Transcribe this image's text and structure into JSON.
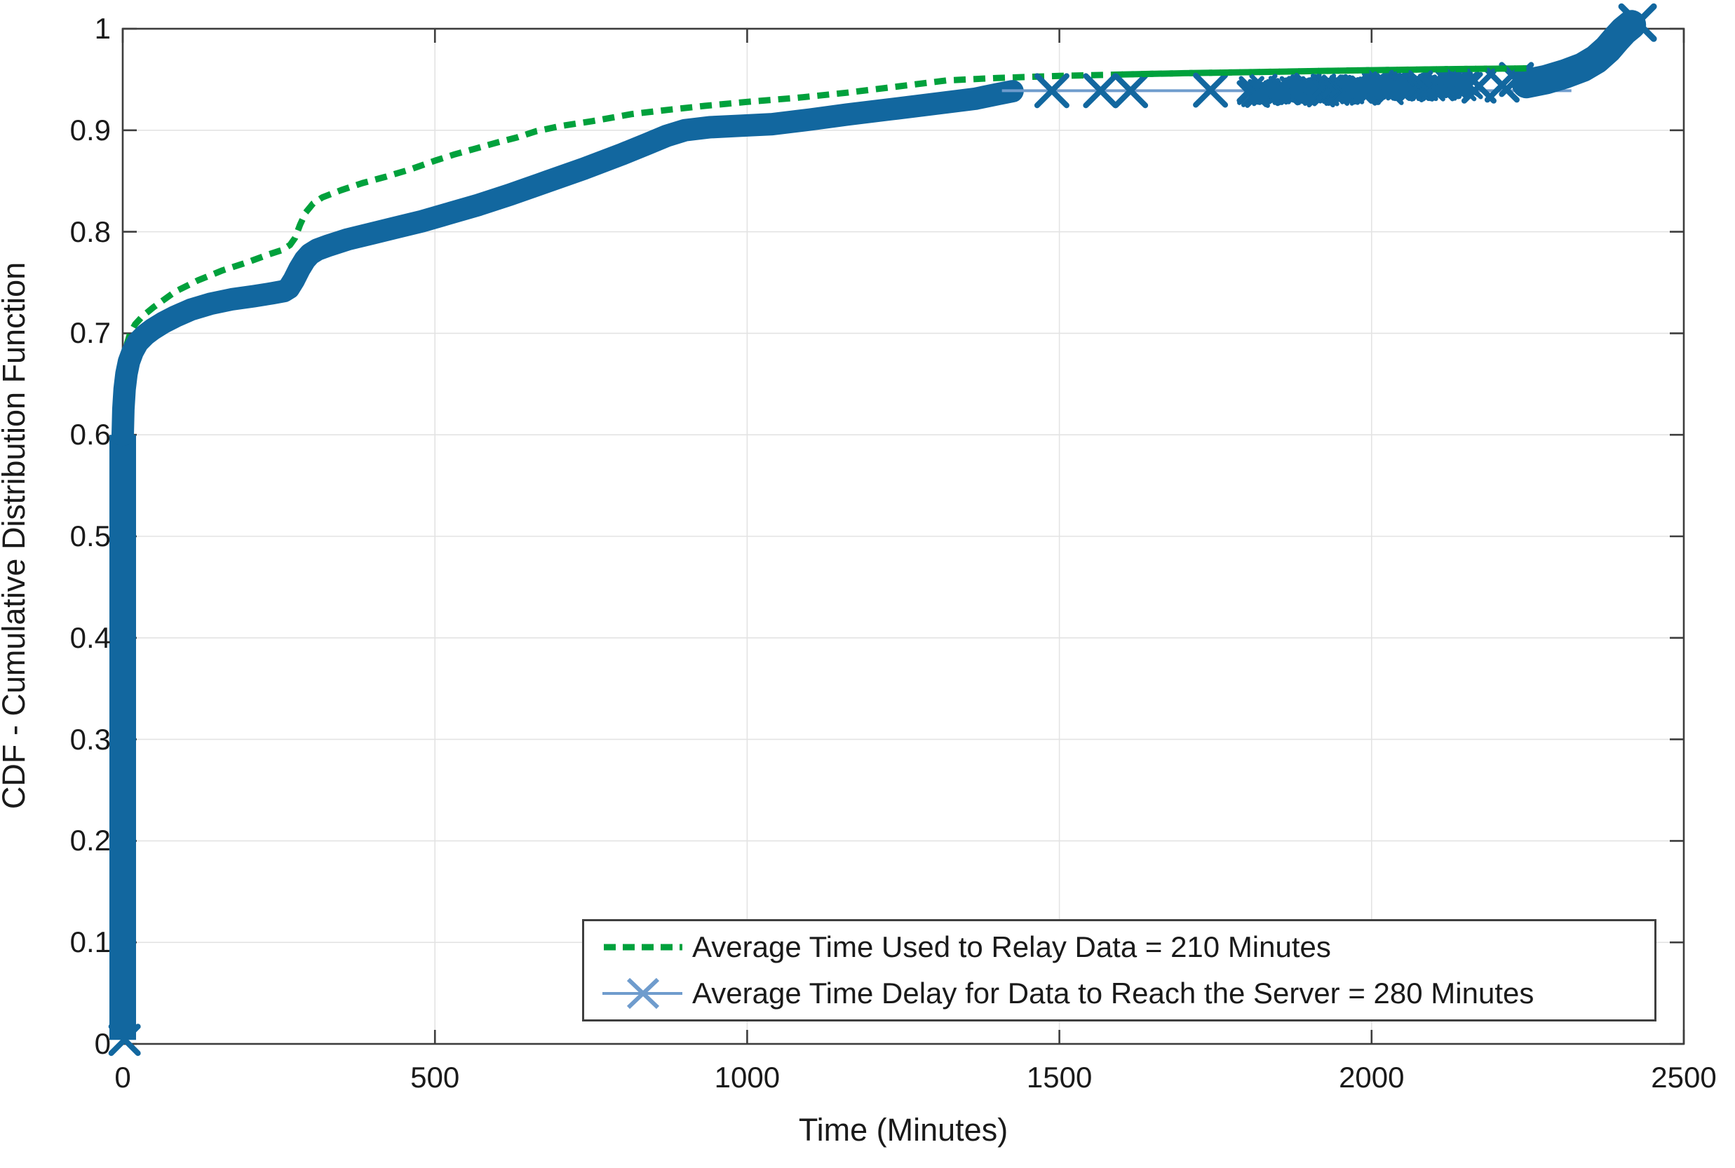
{
  "chart_data": {
    "type": "line",
    "title": "",
    "grid": true,
    "legend_position": "south-inside",
    "colors": {
      "relay_green": "#00a13c",
      "delay_blue": "#12679f",
      "delay_thin_line": "#6f9ccd",
      "grid": "#e3e3e3",
      "frame": "#3d3d3d",
      "text": "#1a1a1a"
    },
    "x_axis": {
      "label": "Time (Minutes)",
      "min": 0,
      "max": 2500,
      "ticks": [
        0,
        500,
        1000,
        1500,
        2000,
        2500
      ],
      "tick_labels": [
        "0",
        "500",
        "1000",
        "1500",
        "2000",
        "2500"
      ]
    },
    "y_axis": {
      "label": "CDF - Cumulative Distribution Function",
      "min": 0,
      "max": 1,
      "ticks": [
        0,
        0.1,
        0.2,
        0.3,
        0.4,
        0.5,
        0.6,
        0.7,
        0.8,
        0.9,
        1
      ],
      "tick_labels": [
        "0",
        "0.1",
        "0.2",
        "0.3",
        "0.4",
        "0.5",
        "0.6",
        "0.7",
        "0.8",
        "0.9",
        "1"
      ]
    },
    "series": [
      {
        "name": "Average Time Used to Relay Data = 210 Minutes",
        "average_minutes": 210,
        "style": "dashed",
        "color": "#00a13c",
        "points": [
          [
            0,
            0.63
          ],
          [
            2,
            0.658
          ],
          [
            4,
            0.676
          ],
          [
            7,
            0.69
          ],
          [
            12,
            0.7
          ],
          [
            20,
            0.709
          ],
          [
            32,
            0.717
          ],
          [
            50,
            0.726
          ],
          [
            84,
            0.741
          ],
          [
            120,
            0.752
          ],
          [
            160,
            0.762
          ],
          [
            200,
            0.77
          ],
          [
            235,
            0.778
          ],
          [
            255,
            0.782
          ],
          [
            268,
            0.787
          ],
          [
            276,
            0.794
          ],
          [
            284,
            0.807
          ],
          [
            293,
            0.819
          ],
          [
            305,
            0.828
          ],
          [
            320,
            0.834
          ],
          [
            350,
            0.841
          ],
          [
            384,
            0.848
          ],
          [
            420,
            0.854
          ],
          [
            458,
            0.861
          ],
          [
            500,
            0.87
          ],
          [
            530,
            0.876
          ],
          [
            565,
            0.882
          ],
          [
            600,
            0.888
          ],
          [
            632,
            0.893
          ],
          [
            662,
            0.899
          ],
          [
            700,
            0.904
          ],
          [
            752,
            0.909
          ],
          [
            816,
            0.916
          ],
          [
            872,
            0.92
          ],
          [
            932,
            0.924
          ],
          [
            1000,
            0.928
          ],
          [
            1080,
            0.932
          ],
          [
            1160,
            0.937
          ],
          [
            1240,
            0.943
          ],
          [
            1319,
            0.949
          ],
          [
            1400,
            0.9515
          ],
          [
            1500,
            0.9535
          ],
          [
            1600,
            0.955
          ],
          [
            1700,
            0.9562
          ],
          [
            1800,
            0.9572
          ],
          [
            1900,
            0.9582
          ],
          [
            2000,
            0.9592
          ],
          [
            2100,
            0.96
          ],
          [
            2180,
            0.9606
          ],
          [
            2255,
            0.961
          ]
        ]
      },
      {
        "name": "Average Time Delay for Data to Reach the Server = 280 Minutes",
        "average_minutes": 280,
        "style": "x-markers",
        "color": "#12679f",
        "line_color": "#6f9ccd",
        "vertical_segment": [
          [
            0,
            0.004
          ],
          [
            0,
            0.6
          ]
        ],
        "band_points": [
          [
            0,
            0.6
          ],
          [
            1,
            0.625
          ],
          [
            3,
            0.645
          ],
          [
            6,
            0.66
          ],
          [
            10,
            0.672
          ],
          [
            16,
            0.682
          ],
          [
            24,
            0.691
          ],
          [
            36,
            0.6985
          ],
          [
            48,
            0.704
          ],
          [
            65,
            0.7105
          ],
          [
            84,
            0.7165
          ],
          [
            110,
            0.7235
          ],
          [
            140,
            0.729
          ],
          [
            175,
            0.7335
          ],
          [
            210,
            0.7365
          ],
          [
            240,
            0.7395
          ],
          [
            258,
            0.7415
          ],
          [
            266,
            0.7445
          ],
          [
            274,
            0.7525
          ],
          [
            283,
            0.7635
          ],
          [
            292,
            0.7725
          ],
          [
            300,
            0.778
          ],
          [
            312,
            0.7825
          ],
          [
            330,
            0.7865
          ],
          [
            360,
            0.7925
          ],
          [
            400,
            0.7985
          ],
          [
            440,
            0.8045
          ],
          [
            480,
            0.8105
          ],
          [
            525,
            0.8185
          ],
          [
            570,
            0.8265
          ],
          [
            620,
            0.8365
          ],
          [
            680,
            0.8495
          ],
          [
            740,
            0.8625
          ],
          [
            800,
            0.8765
          ],
          [
            840,
            0.8865
          ],
          [
            871,
            0.8945
          ],
          [
            900,
            0.9
          ],
          [
            940,
            0.903
          ],
          [
            990,
            0.9045
          ],
          [
            1040,
            0.906
          ],
          [
            1100,
            0.9105
          ],
          [
            1160,
            0.9155
          ],
          [
            1240,
            0.9215
          ],
          [
            1319,
            0.9275
          ],
          [
            1365,
            0.931
          ],
          [
            1400,
            0.9355
          ],
          [
            1425,
            0.9385
          ]
        ],
        "thin_line": {
          "x1": 1408,
          "x2": 2320,
          "y": 0.939
        },
        "sparse_markers": [
          [
            1488,
            0.939
          ],
          [
            1566,
            0.939
          ],
          [
            1614,
            0.939
          ],
          [
            1742,
            0.9395
          ],
          [
            2172,
            0.9435
          ],
          [
            2209,
            0.9445
          ],
          [
            2232,
            0.95
          ]
        ],
        "cluster": {
          "x1": 1800,
          "x2": 2160,
          "y1": 0.9375,
          "y2": 0.945,
          "count": 95
        },
        "tail_points": [
          [
            2248,
            0.946
          ],
          [
            2280,
            0.95
          ],
          [
            2310,
            0.9555
          ],
          [
            2338,
            0.962
          ],
          [
            2360,
            0.97
          ],
          [
            2378,
            0.98
          ],
          [
            2392,
            0.99
          ],
          [
            2404,
            0.998
          ],
          [
            2416,
            1.004
          ]
        ],
        "end_marker": [
          2426,
          1.006
        ],
        "origin_marker": [
          3,
          0.004
        ]
      }
    ]
  },
  "legend": {
    "items": [
      {
        "label": "Average Time Used to Relay Data = 210 Minutes"
      },
      {
        "label": "Average Time Delay for Data to Reach the Server = 280 Minutes"
      }
    ]
  }
}
